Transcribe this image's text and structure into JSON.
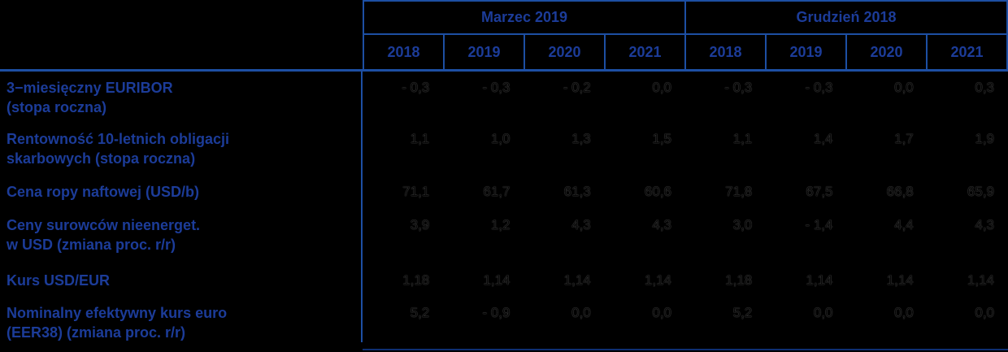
{
  "colors": {
    "background": "#000000",
    "border": "#1d4fa3",
    "header_text": "#1c3c99",
    "value_text": "#000000",
    "bottom_rule": "#0e2e71"
  },
  "header": {
    "groups": [
      {
        "title": "Marzec 2019",
        "years": [
          "2018",
          "2019",
          "2020",
          "2021"
        ]
      },
      {
        "title": "Grudzień 2018",
        "years": [
          "2018",
          "2019",
          "2020",
          "2021"
        ]
      }
    ]
  },
  "rows": [
    {
      "label": [
        "3−miesięczny EURIBOR",
        "(stopa roczna)"
      ],
      "values": [
        "- 0,3",
        "- 0,3",
        "- 0,2",
        "0,0",
        "- 0,3",
        "- 0,3",
        "0,0",
        "0,3"
      ]
    },
    {
      "label": [
        "Rentowność 10-letnich obligacji",
        "skarbowych (stopa roczna)"
      ],
      "values": [
        "1,1",
        "1,0",
        "1,3",
        "1,5",
        "1,1",
        "1,4",
        "1,7",
        "1,9"
      ]
    },
    {
      "label": [
        "Cena ropy naftowej (USD/b)",
        ""
      ],
      "values": [
        "71,1",
        "61,7",
        "61,3",
        "60,6",
        "71,8",
        "67,5",
        "66,8",
        "65,9"
      ]
    },
    {
      "label": [
        "Ceny surowców nieenerget.",
        "w USD (zmiana proc. r/r)"
      ],
      "values": [
        "3,9",
        "1,2",
        "4,3",
        "4,3",
        "3,0",
        "- 1,4",
        "4,4",
        "4,3"
      ]
    },
    {
      "label": [
        "Kurs USD/EUR",
        ""
      ],
      "values": [
        "1,18",
        "1,14",
        "1,14",
        "1,14",
        "1,18",
        "1,14",
        "1,14",
        "1,14"
      ]
    },
    {
      "label": [
        "Nominalny efektywny kurs euro",
        "(EER38) (zmiana proc. r/r)"
      ],
      "values": [
        "5,2",
        "- 0,9",
        "0,0",
        "0,0",
        "5,2",
        "0,0",
        "0,0",
        "0,0"
      ]
    }
  ],
  "chart_data": {
    "type": "table",
    "column_groups": [
      "Marzec 2019",
      "Grudzień 2018"
    ],
    "columns": [
      "2018",
      "2019",
      "2020",
      "2021",
      "2018",
      "2019",
      "2020",
      "2021"
    ],
    "row_labels": [
      "3−miesięczny EURIBOR (stopa roczna)",
      "Rentowność 10-letnich obligacji skarbowych (stopa roczna)",
      "Cena ropy naftowej (USD/b)",
      "Ceny surowców nieenerget. w USD (zmiana proc. r/r)",
      "Kurs USD/EUR",
      "Nominalny efektywny kurs euro (EER38) (zmiana proc. r/r)"
    ],
    "values": [
      [
        -0.3,
        -0.3,
        -0.2,
        0.0,
        -0.3,
        -0.3,
        0.0,
        0.3
      ],
      [
        1.1,
        1.0,
        1.3,
        1.5,
        1.1,
        1.4,
        1.7,
        1.9
      ],
      [
        71.1,
        61.7,
        61.3,
        60.6,
        71.8,
        67.5,
        66.8,
        65.9
      ],
      [
        3.9,
        1.2,
        4.3,
        4.3,
        3.0,
        -1.4,
        4.4,
        4.3
      ],
      [
        1.18,
        1.14,
        1.14,
        1.14,
        1.18,
        1.14,
        1.14,
        1.14
      ],
      [
        5.2,
        -0.9,
        0.0,
        0.0,
        5.2,
        0.0,
        0.0,
        0.0
      ]
    ]
  }
}
